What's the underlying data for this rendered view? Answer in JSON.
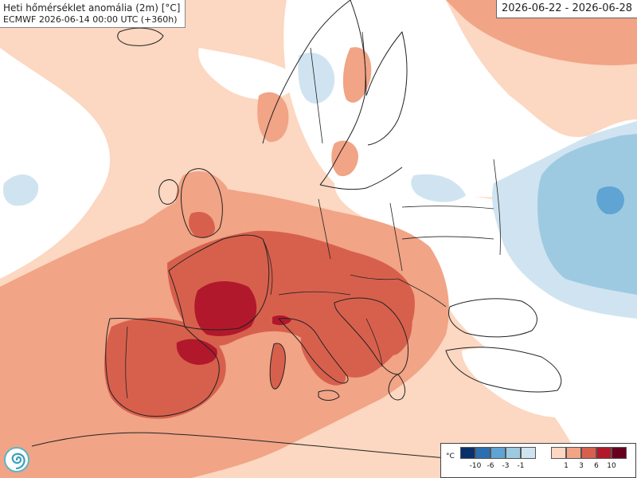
{
  "header": {
    "title": "Heti hőmérséklet anomália (2m) [°C]",
    "subtitle": "ECMWF 2026-06-14 00:00 UTC (+360h)"
  },
  "period": "2026-06-22 - 2026-06-28",
  "legend": {
    "unit": "°C",
    "negative_labels": [
      "-10",
      "-6",
      "-3",
      "-1"
    ],
    "positive_labels": [
      "1",
      "3",
      "6",
      "10"
    ],
    "negative_colors": [
      "#08306b",
      "#2c6fb0",
      "#5fa4d3",
      "#9ecae1",
      "#cfe4f0"
    ],
    "positive_colors": [
      "#fcd7c1",
      "#f1a486",
      "#d7604d",
      "#b2182b",
      "#67001f"
    ]
  },
  "map_colors": {
    "background": "#ffffff",
    "anomaly_light_warm": "#fcd7c1",
    "anomaly_warm": "#f1a486",
    "anomaly_hot": "#d7604d",
    "anomaly_very_hot": "#b2182b",
    "anomaly_light_cool": "#cfe4f0",
    "anomaly_cool": "#9ecae1",
    "anomaly_cold": "#5fa4d3",
    "coastline": "#222222"
  },
  "logo_icon": "spiral-logo-icon"
}
